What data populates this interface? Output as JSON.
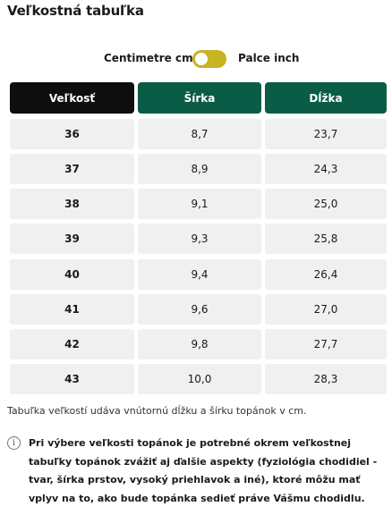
{
  "title": "Veľkostná tabuľka",
  "toggle": {
    "left_label": "Centimetre cm",
    "right_label": "Palce inch",
    "state": "cm",
    "accent": "#c8b320"
  },
  "table": {
    "headers": [
      "Veľkosť",
      "Šírka",
      "Dĺžka"
    ],
    "header_colors": [
      "#0e0e0e",
      "#0a5c46",
      "#0a5c46"
    ],
    "rows": [
      [
        "36",
        "8,7",
        "23,7"
      ],
      [
        "37",
        "8,9",
        "24,3"
      ],
      [
        "38",
        "9,1",
        "25,0"
      ],
      [
        "39",
        "9,3",
        "25,8"
      ],
      [
        "40",
        "9,4",
        "26,4"
      ],
      [
        "41",
        "9,6",
        "27,0"
      ],
      [
        "42",
        "9,8",
        "27,7"
      ],
      [
        "43",
        "10,0",
        "28,3"
      ]
    ]
  },
  "note": "Tabuľka veľkostí udáva vnútornú dĺžku a šírku topánok v cm.",
  "info": {
    "icon": "info-icon",
    "text": "Pri výbere veľkosti topánok je potrebné okrem veľkostnej tabuľky topánok zvážiť aj ďalšie aspekty (fyziológia chodidiel - tvar, šírka prstov, vysoký priehlavok a iné), ktoré môžu mať vplyv na to, ako bude topánka sedieť práve Vášmu chodidlu."
  }
}
